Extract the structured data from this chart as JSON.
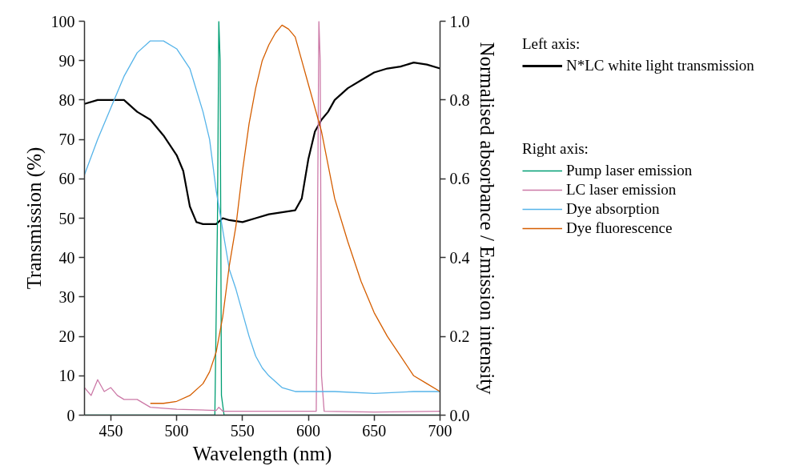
{
  "chart_data": {
    "type": "line",
    "xlabel": "Wavelength (nm)",
    "ylabel": "Transmission (%)",
    "y2label": "Normalised absorbance / Emission intensity",
    "xlim": [
      430,
      700
    ],
    "xticks": [
      450,
      500,
      550,
      600,
      650,
      700
    ],
    "ylim": [
      0,
      100
    ],
    "yticks": [
      0,
      10,
      20,
      30,
      40,
      50,
      60,
      70,
      80,
      90,
      100
    ],
    "y2lim": [
      0,
      1
    ],
    "y2ticks": [
      {
        "value": 0,
        "label": "0.0"
      },
      {
        "value": 0.2,
        "label": "0.2"
      },
      {
        "value": 0.4,
        "label": "0.4"
      },
      {
        "value": 0.6,
        "label": "0.6"
      },
      {
        "value": 0.8,
        "label": "0.8"
      },
      {
        "value": 1,
        "label": "1.0"
      }
    ],
    "grid": false,
    "legend": "right",
    "marker": "none",
    "line_style": "solid",
    "annotations": [
      "Left axis:",
      "Right axis:"
    ],
    "series": [
      {
        "name": "N*LC white light transmission",
        "color": "#000000",
        "x": [
          430,
          440,
          450,
          460,
          470,
          480,
          490,
          500,
          505,
          510,
          515,
          520,
          530,
          535,
          540,
          550,
          560,
          570,
          580,
          590,
          595,
          600,
          605,
          610,
          615,
          620,
          630,
          640,
          650,
          660,
          670,
          680,
          690,
          700
        ],
        "values": [
          79,
          80,
          80,
          80,
          77,
          75,
          71,
          66,
          62,
          53,
          49,
          48.5,
          48.5,
          50,
          49.5,
          49,
          50,
          51,
          51.5,
          52,
          55,
          65,
          72,
          75,
          77,
          80,
          83,
          85,
          87,
          88,
          88.5,
          89.5,
          89,
          88
        ]
      },
      {
        "name": "Pump laser emission",
        "color": "#009e73",
        "axis": "y2",
        "x": [
          430,
          529,
          531,
          532,
          533,
          534,
          536,
          700
        ],
        "values": [
          0,
          0,
          0.5,
          1.0,
          0.9,
          0.05,
          0,
          0
        ]
      },
      {
        "name": "LC laser emission",
        "color": "#cc79a7",
        "axis": "y2",
        "x": [
          430,
          435,
          440,
          445,
          450,
          455,
          460,
          470,
          480,
          500,
          530,
          532,
          535,
          600,
          606,
          607,
          608,
          609,
          610,
          612,
          650,
          700
        ],
        "values": [
          0.07,
          0.05,
          0.09,
          0.06,
          0.07,
          0.05,
          0.04,
          0.04,
          0.02,
          0.015,
          0.012,
          0.02,
          0.01,
          0.01,
          0.01,
          0.5,
          1.0,
          0.9,
          0.1,
          0.01,
          0.008,
          0.01
        ]
      },
      {
        "name": "Dye absorption",
        "color": "#56b4e9",
        "axis": "y2",
        "x": [
          430,
          440,
          450,
          460,
          470,
          480,
          490,
          500,
          510,
          520,
          525,
          530,
          535,
          540,
          545,
          550,
          555,
          560,
          565,
          570,
          580,
          590,
          600,
          620,
          650,
          680,
          700
        ],
        "values": [
          0.61,
          0.7,
          0.78,
          0.86,
          0.92,
          0.95,
          0.95,
          0.93,
          0.88,
          0.77,
          0.7,
          0.57,
          0.47,
          0.37,
          0.32,
          0.26,
          0.2,
          0.15,
          0.12,
          0.1,
          0.07,
          0.06,
          0.06,
          0.06,
          0.055,
          0.06,
          0.06
        ]
      },
      {
        "name": "Dye fluorescence",
        "color": "#d55e00",
        "axis": "y2",
        "x": [
          480,
          490,
          500,
          510,
          520,
          525,
          530,
          535,
          540,
          545,
          550,
          555,
          560,
          565,
          570,
          575,
          580,
          585,
          590,
          595,
          600,
          605,
          610,
          620,
          630,
          640,
          650,
          660,
          670,
          680,
          690,
          700
        ],
        "values": [
          0.03,
          0.03,
          0.035,
          0.05,
          0.08,
          0.11,
          0.16,
          0.25,
          0.38,
          0.48,
          0.62,
          0.74,
          0.83,
          0.9,
          0.94,
          0.97,
          0.99,
          0.98,
          0.96,
          0.9,
          0.84,
          0.78,
          0.72,
          0.55,
          0.44,
          0.34,
          0.26,
          0.2,
          0.15,
          0.1,
          0.08,
          0.06
        ]
      }
    ]
  }
}
